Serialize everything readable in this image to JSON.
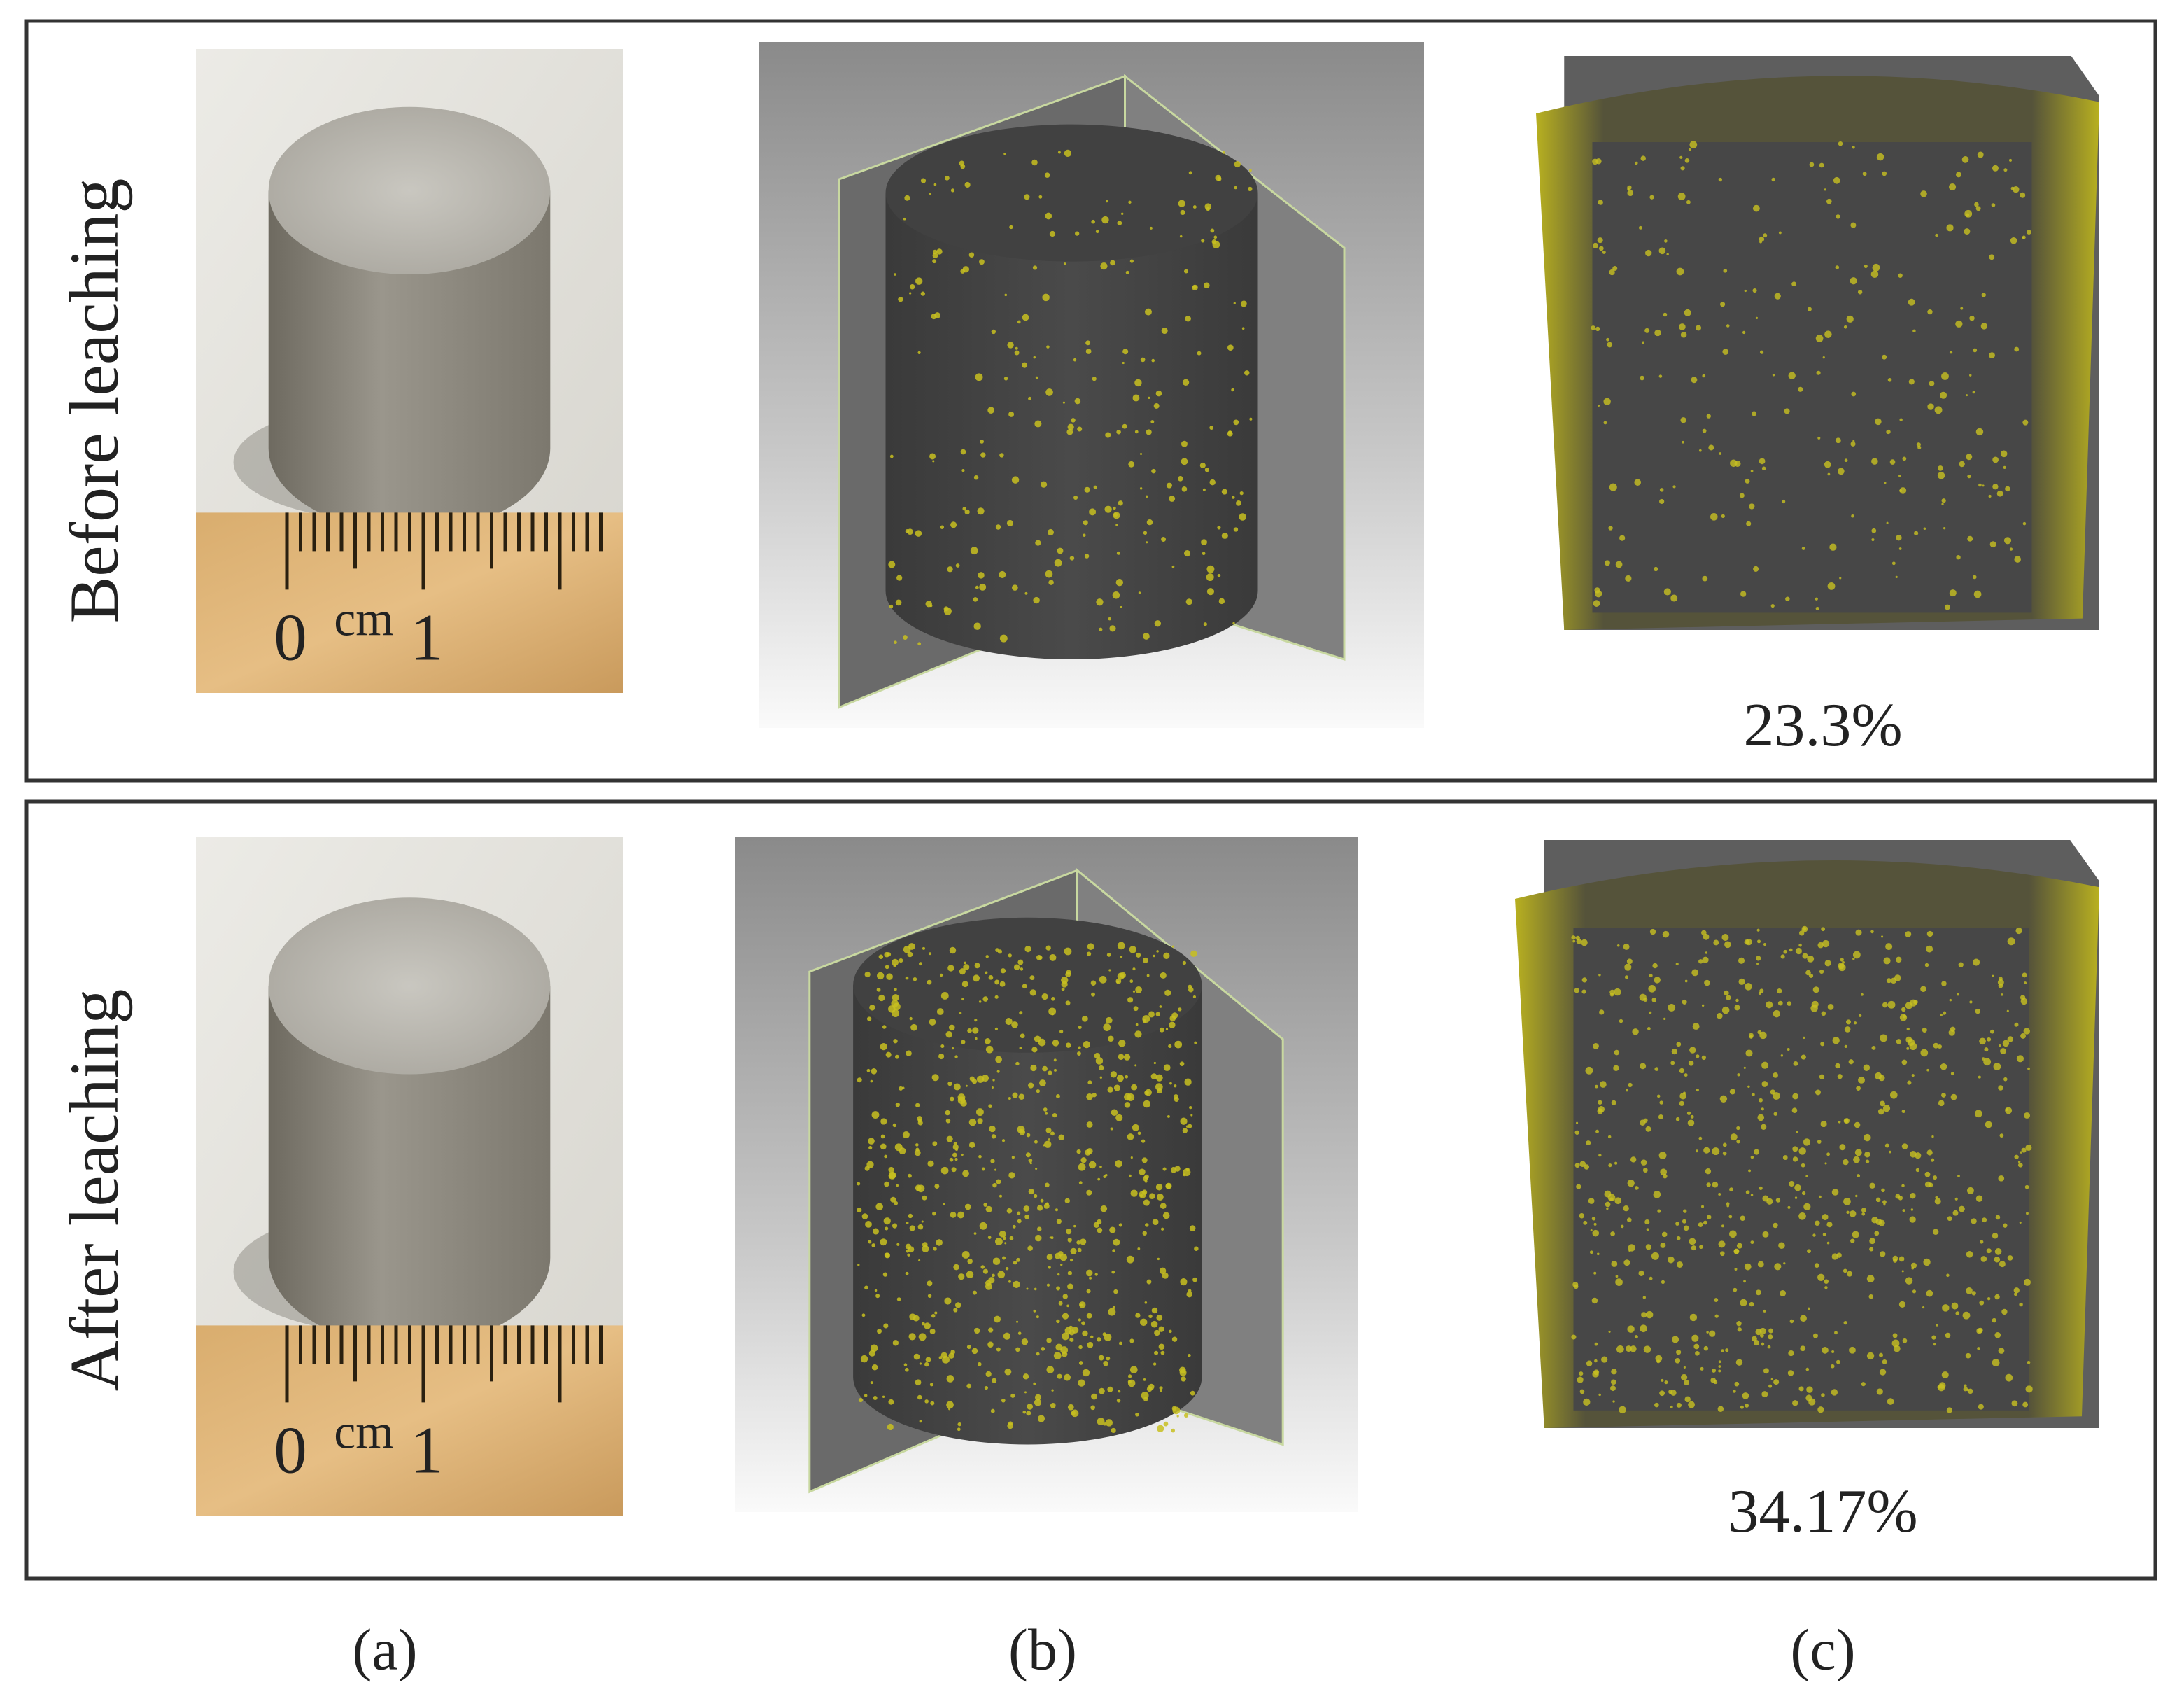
{
  "rows": [
    {
      "label": "Before leaching",
      "porosity": "23.3%"
    },
    {
      "label": "After leaching",
      "porosity": "34.17%"
    }
  ],
  "ruler": {
    "start": "0",
    "unit": "cm",
    "end": "1"
  },
  "column_labels": [
    "(a)",
    "(b)",
    "(c)"
  ]
}
